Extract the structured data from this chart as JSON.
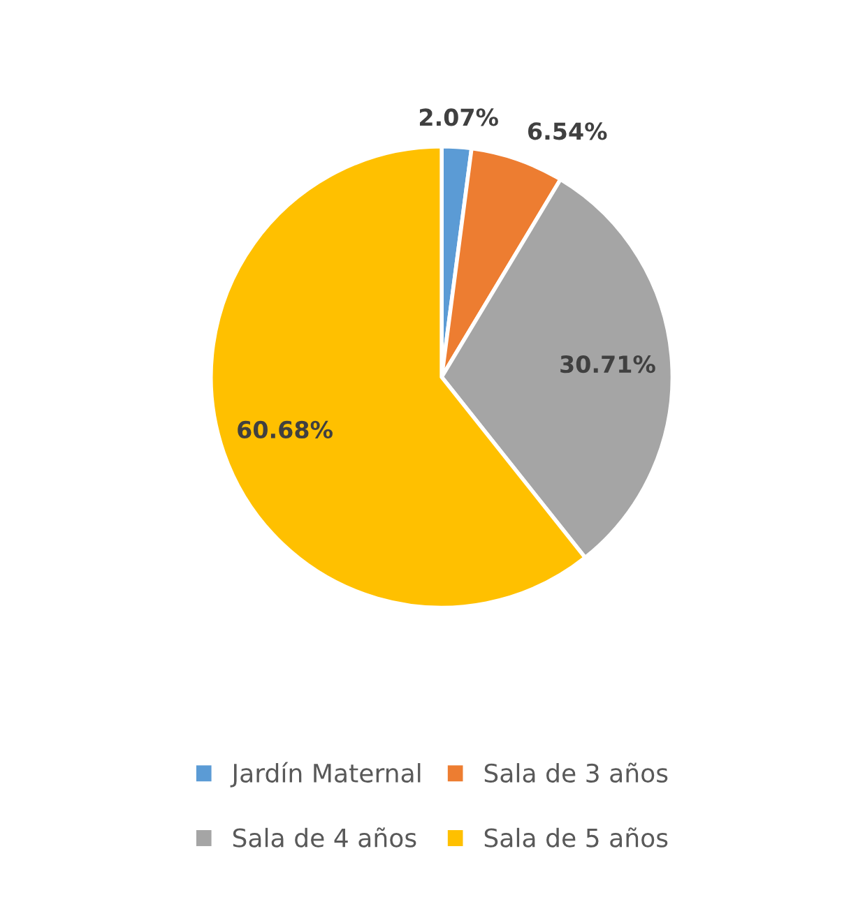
{
  "chart_data": {
    "type": "pie",
    "categories": [
      "Jardín Maternal",
      "Sala de 3 años",
      "Sala de 4 años",
      "Sala de 5 años"
    ],
    "values": [
      2.07,
      6.54,
      30.71,
      60.68
    ],
    "colors": [
      "#5b9bd5",
      "#ed7d31",
      "#a5a5a5",
      "#ffc000"
    ],
    "value_labels": [
      "2.07%",
      "6.54%",
      "30.71%",
      "60.68%"
    ],
    "legend": "bottom"
  }
}
